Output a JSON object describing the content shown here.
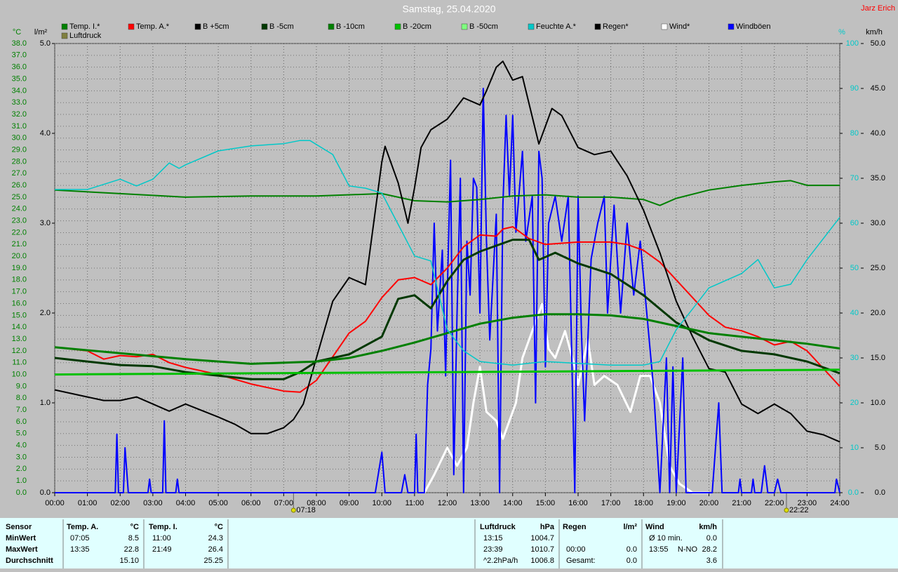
{
  "chart_data": {
    "type": "line",
    "title": "Samstag, 25.04.2020",
    "corner_label": "Jarz Erich",
    "ylabel": "°C",
    "y2label": "l/m²",
    "y3label": "%",
    "y4label": "km/h",
    "xlim": [
      0,
      24
    ],
    "xticks": [
      {
        "value": 0,
        "label": "00:00"
      },
      {
        "value": 1,
        "label": "01:00"
      },
      {
        "value": 2,
        "label": "02:00"
      },
      {
        "value": 3,
        "label": "03:00"
      },
      {
        "value": 4,
        "label": "04:00"
      },
      {
        "value": 5,
        "label": "05:00"
      },
      {
        "value": 6,
        "label": "06:00"
      },
      {
        "value": 7,
        "label": "07:00"
      },
      {
        "value": 8,
        "label": "08:00"
      },
      {
        "value": 9,
        "label": "09:00"
      },
      {
        "value": 10,
        "label": "10:00"
      },
      {
        "value": 11,
        "label": "11:00"
      },
      {
        "value": 12,
        "label": "12:00"
      },
      {
        "value": 13,
        "label": "13:00"
      },
      {
        "value": 14,
        "label": "14:00"
      },
      {
        "value": 15,
        "label": "15:00"
      },
      {
        "value": 16,
        "label": "16:00"
      },
      {
        "value": 17,
        "label": "17:00"
      },
      {
        "value": 18,
        "label": "18:00"
      },
      {
        "value": 19,
        "label": "19:00"
      },
      {
        "value": 20,
        "label": "20:00"
      },
      {
        "value": 21,
        "label": "21:00"
      },
      {
        "value": 22,
        "label": "22:00"
      },
      {
        "value": 23,
        "label": "23:00"
      },
      {
        "value": 24,
        "label": "24:00"
      }
    ],
    "ylim": [
      0,
      38
    ],
    "yticks": [
      {
        "value": 0,
        "label": "0.0"
      },
      {
        "value": 1,
        "label": "1.0"
      },
      {
        "value": 2,
        "label": "2.0"
      },
      {
        "value": 3,
        "label": "3.0"
      },
      {
        "value": 4,
        "label": "4.0"
      },
      {
        "value": 5,
        "label": "5.0"
      },
      {
        "value": 6,
        "label": "6.0"
      },
      {
        "value": 7,
        "label": "7.0"
      },
      {
        "value": 8,
        "label": "8.0"
      },
      {
        "value": 9,
        "label": "9.0"
      },
      {
        "value": 10,
        "label": "10.0"
      },
      {
        "value": 11,
        "label": "11.0"
      },
      {
        "value": 12,
        "label": "12.0"
      },
      {
        "value": 13,
        "label": "13.0"
      },
      {
        "value": 14,
        "label": "14.0"
      },
      {
        "value": 15,
        "label": "15.0"
      },
      {
        "value": 16,
        "label": "16.0"
      },
      {
        "value": 17,
        "label": "17.0"
      },
      {
        "value": 18,
        "label": "18.0"
      },
      {
        "value": 19,
        "label": "19.0"
      },
      {
        "value": 20,
        "label": "20.0"
      },
      {
        "value": 21,
        "label": "21.0"
      },
      {
        "value": 22,
        "label": "22.0"
      },
      {
        "value": 23,
        "label": "23.0"
      },
      {
        "value": 24,
        "label": "24.0"
      },
      {
        "value": 25,
        "label": "25.0"
      },
      {
        "value": 26,
        "label": "26.0"
      },
      {
        "value": 27,
        "label": "27.0"
      },
      {
        "value": 28,
        "label": "28.0"
      },
      {
        "value": 29,
        "label": "29.0"
      },
      {
        "value": 30,
        "label": "30.0"
      },
      {
        "value": 31,
        "label": "31.0"
      },
      {
        "value": 32,
        "label": "32.0"
      },
      {
        "value": 33,
        "label": "33.0"
      },
      {
        "value": 34,
        "label": "34.0"
      },
      {
        "value": 35,
        "label": "35.0"
      },
      {
        "value": 36,
        "label": "36.0"
      },
      {
        "value": 37,
        "label": "37.0"
      },
      {
        "value": 38,
        "label": "38.0"
      }
    ],
    "y2lim": [
      0,
      5
    ],
    "y2ticks": [
      {
        "value": 0,
        "label": "0.0"
      },
      {
        "value": 1,
        "label": "1.0"
      },
      {
        "value": 2,
        "label": "2.0"
      },
      {
        "value": 3,
        "label": "3.0"
      },
      {
        "value": 4,
        "label": "4.0"
      },
      {
        "value": 5,
        "label": "5.0"
      }
    ],
    "y3lim": [
      0,
      100
    ],
    "y3ticks": [
      {
        "value": 0,
        "label": "0.0"
      },
      10,
      20,
      30,
      40,
      50,
      60,
      70,
      80,
      90,
      100
    ],
    "y4lim": [
      0,
      50
    ],
    "y4ticks": [
      {
        "value": 0,
        "label": "0.0"
      },
      {
        "value": 5,
        "label": "5.0"
      },
      {
        "value": 10,
        "label": "10.0"
      },
      {
        "value": 15,
        "label": "15.0"
      },
      {
        "value": 20,
        "label": "20.0"
      },
      {
        "value": 25,
        "label": "25.0"
      },
      {
        "value": 30,
        "label": "30.0"
      },
      {
        "value": 35,
        "label": "35.0"
      },
      {
        "value": 40,
        "label": "40.0"
      },
      {
        "value": 45,
        "label": "45.0"
      },
      {
        "value": 50,
        "label": "50.0"
      }
    ],
    "grid": true,
    "events": [
      {
        "x": 7.3,
        "label": "07:18"
      },
      {
        "x": 22.37,
        "label": "22:22"
      }
    ],
    "series": [
      {
        "name": "Temp. I.*",
        "color": "#008000",
        "width": 2,
        "x": [
          0,
          2,
          4,
          6,
          8,
          10,
          11,
          12,
          13,
          14,
          15,
          16,
          17,
          18,
          18.5,
          19,
          20,
          21,
          22,
          22.5,
          23,
          24
        ],
        "values": [
          25.6,
          25.3,
          25.0,
          25.1,
          25.1,
          25.3,
          24.7,
          24.6,
          24.8,
          25.1,
          25.2,
          25.0,
          25.0,
          24.8,
          24.3,
          24.9,
          25.6,
          26.0,
          26.3,
          26.4,
          26.0,
          26.0
        ]
      },
      {
        "name": "Temp. A.*",
        "color": "#ff0000",
        "width": 2,
        "x": [
          0,
          1,
          1.5,
          2,
          2.5,
          3,
          3.5,
          4,
          5,
          6,
          7,
          7.5,
          8,
          8.5,
          9,
          9.5,
          10,
          10.5,
          11,
          11.5,
          12,
          12.5,
          13,
          13.5,
          13.7,
          14,
          14.5,
          15,
          16,
          17,
          17.5,
          18,
          18.5,
          19,
          19.5,
          20,
          20.5,
          21,
          21.5,
          22,
          22.5,
          23,
          23.5,
          24
        ],
        "values": [
          12.3,
          12,
          11.3,
          11.6,
          11.5,
          11.7,
          11,
          10.6,
          10,
          9.2,
          8.6,
          8.5,
          9.5,
          11.5,
          13.5,
          14.5,
          16.5,
          18,
          18.2,
          17.6,
          19,
          20.8,
          21.8,
          21.7,
          22.3,
          22.5,
          21.5,
          21.0,
          21.2,
          21.2,
          21,
          20.5,
          19.5,
          18,
          16.5,
          15,
          14,
          13.7,
          13.2,
          12.5,
          12.8,
          12,
          10.5,
          9
        ]
      },
      {
        "name": "B +5cm",
        "color": "#000000",
        "width": 2,
        "x": [
          0,
          1,
          1.5,
          2,
          2.5,
          3,
          3.5,
          4,
          5,
          5.5,
          6,
          6.5,
          7,
          7.3,
          7.6,
          8,
          8.5,
          9,
          9.5,
          10,
          10.1,
          10.5,
          10.8,
          11,
          11.2,
          11.5,
          12,
          12.5,
          13,
          13.2,
          13.5,
          13.7,
          14,
          14.3,
          14.8,
          15.2,
          15.5,
          16,
          16.5,
          17,
          17.5,
          18,
          18.5,
          19,
          19.5,
          20,
          20.5,
          21,
          21.5,
          22,
          22.5,
          23,
          23.5,
          24
        ],
        "values": [
          8.7,
          8.1,
          7.8,
          7.8,
          8.1,
          7.5,
          6.9,
          7.5,
          6.4,
          5.8,
          5.0,
          5.0,
          5.5,
          6.2,
          7.5,
          11.4,
          16.2,
          18.2,
          17.6,
          28,
          29.3,
          26.2,
          22.8,
          25.8,
          29.2,
          30.7,
          31.6,
          33.4,
          32.8,
          34,
          36.0,
          36.5,
          34.9,
          35.2,
          29.5,
          32.5,
          31.9,
          29.2,
          28.6,
          28.9,
          26.8,
          23.9,
          20.3,
          16.2,
          13.2,
          10.5,
          10.2,
          7.5,
          6.7,
          7.5,
          6.7,
          5.2,
          4.9,
          4.3
        ]
      },
      {
        "name": "B -5cm",
        "color": "#003800",
        "width": 3,
        "x": [
          0,
          1,
          2,
          3,
          4,
          5,
          6,
          7,
          7.5,
          8,
          9,
          10,
          10.5,
          11,
          11.5,
          12,
          12.5,
          13,
          13.5,
          14,
          14.5,
          14.8,
          15.3,
          16,
          17,
          18,
          19,
          20,
          21,
          22,
          23,
          24
        ],
        "values": [
          11.4,
          11.1,
          10.8,
          10.7,
          10.2,
          9.9,
          9.6,
          9.6,
          10.2,
          11.1,
          11.7,
          13.2,
          16.4,
          16.7,
          15.6,
          17.9,
          19.7,
          20.4,
          20.9,
          21.4,
          21.4,
          19.7,
          20.3,
          19.4,
          18.5,
          16.7,
          14.4,
          12.9,
          12.0,
          11.7,
          11.1,
          10.1
        ]
      },
      {
        "name": "B -10cm",
        "color": "#008000",
        "width": 3,
        "x": [
          0,
          2,
          4,
          6,
          8,
          9,
          10,
          11,
          12,
          13,
          14,
          15,
          16,
          17,
          18,
          19,
          20,
          21,
          22,
          23,
          24
        ],
        "values": [
          12.3,
          11.8,
          11.3,
          10.9,
          11.1,
          11.4,
          12.0,
          12.7,
          13.5,
          14.3,
          14.8,
          15.1,
          15.1,
          15.0,
          14.7,
          14.1,
          13.5,
          13.2,
          12.9,
          12.6,
          12.2
        ]
      },
      {
        "name": "B -20cm",
        "color": "#00c000",
        "width": 3,
        "x": [
          0,
          6,
          12,
          18,
          24
        ],
        "values": [
          10.0,
          10.1,
          10.2,
          10.3,
          10.4
        ]
      },
      {
        "name": "B -50cm",
        "color": "#80ff80"
      },
      {
        "name": "Feuchte A.*",
        "color": "#00c8c8",
        "width": 1.5,
        "axis": "y3",
        "x": [
          0,
          1,
          2,
          2.5,
          3,
          3.5,
          3.8,
          4,
          5,
          6,
          7,
          7.5,
          7.8,
          8.5,
          9,
          9.5,
          10,
          10.5,
          11,
          11.5,
          12,
          12.5,
          13,
          14,
          15,
          16,
          17,
          18,
          18.5,
          19,
          19.5,
          20,
          20.5,
          21,
          21.5,
          22,
          22.5,
          23,
          24
        ],
        "values": [
          67.5,
          67.5,
          69.8,
          68.3,
          69.8,
          73.4,
          72.2,
          73,
          76.1,
          77.2,
          77.7,
          78.4,
          78.4,
          75.3,
          68.3,
          67.8,
          66.7,
          59.7,
          52.7,
          51.6,
          36.3,
          31.6,
          29.2,
          28.4,
          29.2,
          28.8,
          28.4,
          28.4,
          29.2,
          36.3,
          40.9,
          45.6,
          47.2,
          48.8,
          51.9,
          45.6,
          46.4,
          51.9,
          61.3
        ]
      },
      {
        "name": "Regen*",
        "color": "#000000"
      },
      {
        "name": "Wind*",
        "color": "#ffffff",
        "width": 3,
        "axis": "y4",
        "x": [
          0,
          11.3,
          11.6,
          12,
          12.3,
          12.6,
          12.8,
          13.0,
          13.2,
          13.5,
          13.7,
          13.9,
          14.1,
          14.3,
          14.6,
          14.9,
          15.1,
          15.3,
          15.6,
          15.9,
          16.0,
          16.3,
          16.5,
          16.8,
          17.2,
          17.6,
          17.9,
          18.2,
          18.5,
          18.8,
          19.1,
          19.5,
          20
        ],
        "values": [
          null,
          0,
          2,
          5,
          3,
          5,
          10,
          14,
          9,
          8,
          6,
          8,
          10,
          15,
          18,
          21,
          16,
          15,
          18,
          14,
          12,
          17,
          12,
          13,
          12,
          9,
          13,
          13,
          10,
          3,
          1,
          0,
          0
        ]
      },
      {
        "name": "Windböen",
        "color": "#0000ff",
        "width": 2,
        "axis": "y4",
        "x": [
          0,
          1.85,
          1.9,
          1.95,
          2.1,
          2.15,
          2.25,
          2.85,
          2.9,
          2.95,
          3.3,
          3.35,
          3.4,
          3.7,
          3.75,
          3.8,
          9.8,
          10.0,
          10.1,
          10.6,
          10.7,
          10.8,
          11.0,
          11.05,
          11.1,
          11.3,
          11.4,
          11.5,
          11.6,
          11.7,
          11.85,
          11.95,
          12.0,
          12.1,
          12.2,
          12.3,
          12.4,
          12.5,
          12.6,
          12.7,
          12.8,
          12.9,
          13.0,
          13.1,
          13.2,
          13.3,
          13.5,
          13.6,
          13.7,
          13.8,
          13.9,
          14.0,
          14.1,
          14.3,
          14.4,
          14.6,
          14.7,
          14.8,
          14.9,
          15.0,
          15.1,
          15.3,
          15.5,
          15.7,
          15.9,
          16.0,
          16.1,
          16.2,
          16.4,
          16.6,
          16.8,
          16.9,
          17.1,
          17.3,
          17.5,
          17.7,
          17.9,
          18.1,
          18.3,
          18.5,
          18.7,
          18.8,
          18.9,
          19.0,
          19.2,
          19.3,
          20.1,
          20.3,
          20.4,
          20.9,
          20.95,
          21.0,
          21.3,
          21.35,
          21.4,
          21.6,
          21.7,
          21.8,
          22.0,
          22.1,
          22.2,
          23.85,
          23.9,
          24
        ],
        "values": [
          0,
          0,
          6.5,
          0,
          0,
          5,
          0,
          0,
          1.5,
          0,
          0,
          8,
          0,
          0,
          1.5,
          0,
          0,
          4.5,
          0,
          0,
          2,
          0,
          0,
          6.5,
          0,
          0,
          12,
          16,
          30,
          18,
          27,
          13,
          22,
          37,
          2,
          20,
          35,
          0,
          28,
          22,
          35,
          34,
          20,
          45,
          28,
          17,
          31,
          0,
          32,
          42,
          33,
          42,
          29,
          38,
          28,
          33,
          10,
          38,
          35,
          14,
          30,
          33,
          28,
          33,
          0,
          33,
          18,
          8,
          26,
          30,
          33,
          20,
          32,
          20,
          30,
          22,
          28,
          20,
          12,
          0,
          15,
          0,
          14,
          0,
          15,
          0,
          0,
          10,
          0,
          0,
          1.5,
          0,
          0,
          1.5,
          0,
          0,
          3,
          0,
          0,
          1.5,
          0,
          0,
          1.5,
          0
        ]
      },
      {
        "name": "Luftdruck",
        "color": "#808040"
      }
    ]
  },
  "table": {
    "row_labels": {
      "header": "Sensor",
      "rows": [
        "MinWert",
        "MaxWert",
        "Durchschnitt"
      ]
    },
    "groups": [
      {
        "header": "Temp. A.",
        "unit": "°C",
        "rows": [
          [
            "07:05",
            "8.5"
          ],
          [
            "13:35",
            "22.8"
          ],
          [
            "15.10"
          ]
        ]
      },
      {
        "header": "Temp. I.",
        "unit": "°C",
        "rows": [
          [
            "11:00",
            "24.3"
          ],
          [
            "21:49",
            "26.4"
          ],
          [
            "25.25"
          ]
        ]
      },
      {
        "header": "Luftdruck",
        "unit": "hPa",
        "rows": [
          [
            "13:15",
            "1004.7"
          ],
          [
            "23:39",
            "1010.7"
          ],
          [
            "^2.2hPa/h",
            "1006.8"
          ]
        ]
      },
      {
        "header": "Regen",
        "unit": "l/m²",
        "rows": [
          null,
          [
            "00:00",
            "0.0"
          ],
          [
            "Gesamt:",
            "0.0"
          ]
        ]
      },
      {
        "header": "Wind",
        "unit": "km/h",
        "rows": [
          [
            "Ø 10 min.",
            "0.0"
          ],
          [
            "13:55",
            "N-NO",
            "28.2"
          ],
          [
            "3.6"
          ]
        ]
      }
    ]
  }
}
